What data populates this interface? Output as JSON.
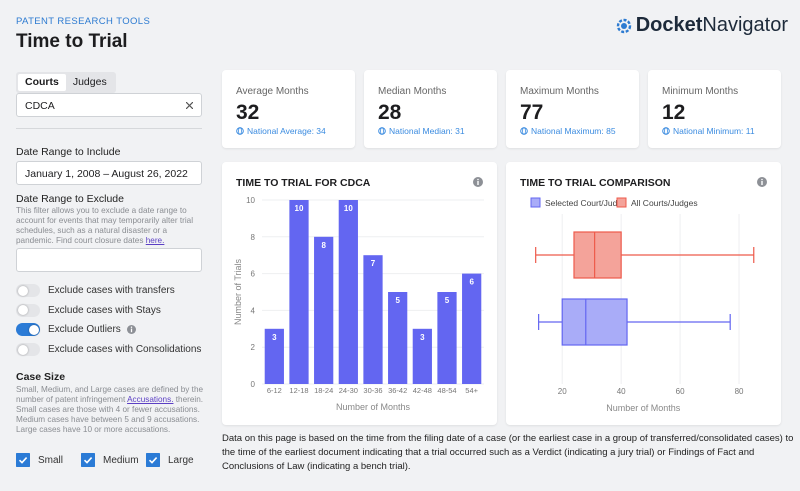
{
  "header": {
    "eyebrow": "PATENT RESEARCH TOOLS",
    "title": "Time to Trial",
    "logo": {
      "bold": "Docket",
      "regular": "Navigator"
    }
  },
  "filters": {
    "tabs": [
      "Courts",
      "Judges"
    ],
    "active_tab": 0,
    "court": "CDCA",
    "include_label": "Date Range to Include",
    "include_value": "January 1, 2008 – August 26, 2022",
    "exclude_label": "Date Range to Exclude",
    "exclude_help": {
      "text": "This filter allows you to exclude a date range to account for events that may temporarily alter trial schedules, such as a natural disaster or a pandemic. Find court closure dates",
      "link": "here."
    },
    "toggles": [
      {
        "label": "Exclude cases with transfers",
        "on": false,
        "info": false
      },
      {
        "label": "Exclude cases with Stays",
        "on": false,
        "info": false
      },
      {
        "label": "Exclude Outliers",
        "on": true,
        "info": true
      },
      {
        "label": "Exclude cases with Consolidations",
        "on": false,
        "info": false
      }
    ],
    "case_size": {
      "label": "Case Size",
      "help": {
        "text": "Small, Medium, and Large cases are defined by the number of patent infringement",
        "link": "Accusations.",
        "after": "therein. Small cases are those with 4 or fewer accusations. Medium cases have between 5 and 9 accusations. Large cases have 10 or more accusations."
      },
      "options": [
        {
          "label": "Small",
          "checked": true
        },
        {
          "label": "Medium",
          "checked": true
        },
        {
          "label": "Large",
          "checked": true
        }
      ]
    }
  },
  "stats": [
    {
      "label": "Average Months",
      "value": 32,
      "national": "National Average: 34"
    },
    {
      "label": "Median Months",
      "value": 28,
      "national": "National Median: 31"
    },
    {
      "label": "Maximum Months",
      "value": 77,
      "national": "National Maximum: 85"
    },
    {
      "label": "Minimum Months",
      "value": 12,
      "national": "National Minimum: 11"
    }
  ],
  "chart_data": [
    {
      "type": "bar",
      "title": "TIME TO TRIAL FOR CDCA",
      "x_label": "Number of Months",
      "y_label": "Number of Trials",
      "categories": [
        "6-12",
        "12-18",
        "18-24",
        "24-30",
        "30-36",
        "36-42",
        "42-48",
        "48-54",
        "54+"
      ],
      "values": [
        3,
        10,
        8,
        10,
        7,
        5,
        3,
        5,
        6
      ],
      "color": "#6366f1",
      "ylim": [
        0,
        10
      ],
      "yticks": [
        0,
        2,
        4,
        6,
        8,
        10
      ],
      "grid": true
    },
    {
      "type": "box",
      "title": "TIME TO TRIAL COMPARISON",
      "x_label": "Number of Months",
      "orientation": "horizontal",
      "series": [
        {
          "name": "Selected Court/Judge",
          "color": "#6366f1",
          "fill": "#a9acf8",
          "min": 12,
          "q1": 20,
          "median": 28,
          "q3": 42,
          "max": 77
        },
        {
          "name": "All Courts/Judges",
          "color": "#ee5a4b",
          "fill": "#f4a39a",
          "min": 11,
          "q1": 24,
          "median": 31,
          "q3": 40,
          "max": 85
        }
      ],
      "xlim": [
        5,
        90
      ],
      "xticks": [
        20,
        40,
        60,
        80
      ],
      "grid": true
    }
  ],
  "note": "Data on this page is based on the time from the filing date of a case (or the earliest case in a group of transferred/consolidated cases) to the time of the earliest document indicating that a trial occurred such as a Verdict (indicating a jury trial) or Findings of Fact and Conclusions of Law (indicating a bench trial)."
}
